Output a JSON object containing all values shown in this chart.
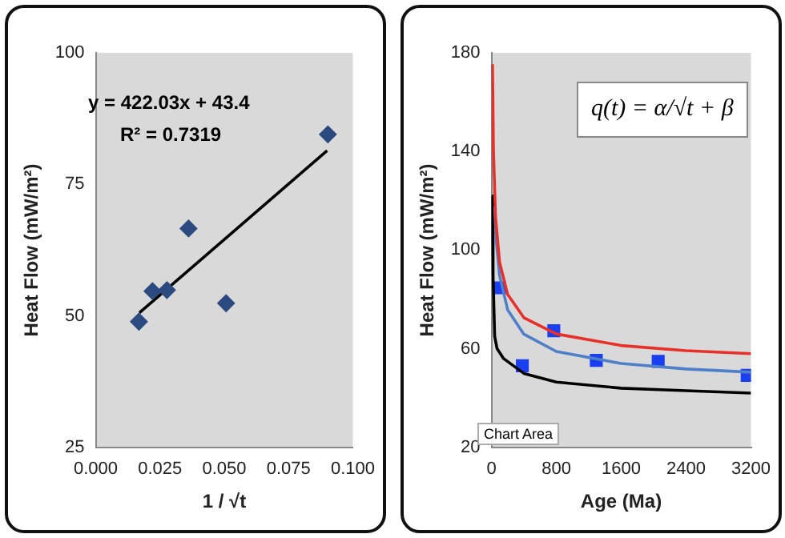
{
  "chart_data": [
    {
      "type": "scatter",
      "xlabel": "1 / √t",
      "ylabel": "Heat Flow (mW/m²)",
      "xlim": [
        0,
        0.1
      ],
      "xticks": [
        {
          "value": 0,
          "label": "0.000"
        },
        {
          "value": 0.025,
          "label": "0.025"
        },
        {
          "value": 0.05,
          "label": "0.050"
        },
        {
          "value": 0.075,
          "label": "0.075"
        },
        {
          "value": 0.1,
          "label": "0.100"
        }
      ],
      "ylim": [
        25,
        100
      ],
      "yticks": [
        25,
        50,
        75,
        100
      ],
      "grid": false,
      "legend": false,
      "annotations": [
        "y = 422.03x + 43.4",
        "R² = 0.7319"
      ],
      "series": [
        {
          "type": "scatter",
          "marker": "diamond",
          "color": "#2b4a80",
          "x": [
            0.0168,
            0.0221,
            0.0277,
            0.0361,
            0.0507,
            0.0903
          ],
          "values": [
            48.9,
            54.7,
            54.9,
            66.6,
            52.4,
            84.5
          ]
        },
        {
          "type": "line",
          "marker": "none",
          "color": "#000000",
          "x": [
            0.017,
            0.09
          ],
          "values": [
            50.6,
            81.4
          ]
        }
      ]
    },
    {
      "type": "scatter",
      "xlabel": "Age (Ma)",
      "ylabel": "Heat Flow (mW/m²)",
      "xlim": [
        0,
        3200
      ],
      "xticks": [
        0,
        800,
        1600,
        2400,
        3200
      ],
      "ylim": [
        20,
        180
      ],
      "yticks": [
        20,
        60,
        100,
        140,
        180
      ],
      "grid": false,
      "legend": false,
      "annotations": [
        "q(t) = α/√t + β",
        "Chart Area"
      ],
      "series": [
        {
          "type": "line",
          "marker": "none",
          "color": "#e8302a",
          "x": [
            13,
            25,
            50,
            100,
            200,
            400,
            800,
            1600,
            2400,
            3200
          ],
          "values": [
            175.4,
            140.4,
            113.9,
            95.2,
            82,
            72.6,
            66,
            61.3,
            59.2,
            58
          ]
        },
        {
          "type": "line",
          "marker": "none",
          "color": "#4f7fc8",
          "x": [
            40,
            60,
            100,
            200,
            400,
            800,
            1600,
            2400,
            3200
          ],
          "values": [
            117.6,
            103.7,
            89.8,
            75.8,
            65.9,
            58.9,
            54,
            51.8,
            50.5
          ]
        },
        {
          "type": "line",
          "marker": "none",
          "color": "#000000",
          "x": [
            5,
            20,
            40,
            70,
            150,
            400,
            800,
            1600,
            2400,
            3200
          ],
          "values": [
            122,
            90,
            65,
            60,
            56,
            50,
            46.5,
            44,
            43,
            42
          ]
        },
        {
          "type": "scatter",
          "marker": "square",
          "color": "#1a3ff0",
          "x": [
            101,
            381,
            769,
            1293,
            2056,
            3153
          ],
          "values": [
            84.7,
            53.1,
            67.3,
            55.3,
            54.9,
            49.2
          ]
        }
      ]
    }
  ]
}
